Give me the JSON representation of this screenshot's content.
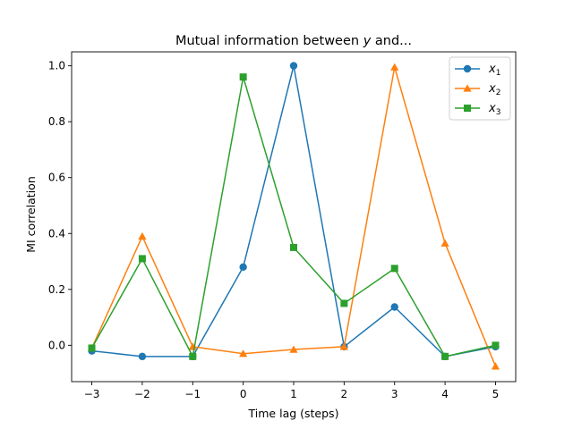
{
  "chart_data": {
    "type": "line",
    "title": "Mutual information between y and...",
    "title_parts": {
      "prefix": "Mutual information between ",
      "var": "y",
      "suffix": " and..."
    },
    "xlabel": "Time lag (steps)",
    "ylabel": "MI correlation",
    "x": [
      -3,
      -2,
      -1,
      0,
      1,
      2,
      3,
      4,
      5
    ],
    "xticks": [
      -3,
      -2,
      -1,
      0,
      1,
      2,
      3,
      4,
      5
    ],
    "xtick_labels": [
      "−3",
      "−2",
      "−1",
      "0",
      "1",
      "2",
      "3",
      "4",
      "5"
    ],
    "yticks": [
      0.0,
      0.2,
      0.4,
      0.6,
      0.8,
      1.0
    ],
    "ytick_labels": [
      "0.0",
      "0.2",
      "0.4",
      "0.6",
      "0.8",
      "1.0"
    ],
    "xlim": [
      -3.4,
      5.4
    ],
    "ylim": [
      -0.13,
      1.05
    ],
    "grid": false,
    "legend_position": "top-right",
    "series": [
      {
        "name": "x1",
        "var": "x",
        "sub": "1",
        "color": "#1f77b4",
        "marker": "circle",
        "values": [
          -0.02,
          -0.04,
          -0.04,
          0.28,
          1.0,
          -0.005,
          0.137,
          -0.04,
          -0.005
        ]
      },
      {
        "name": "x2",
        "var": "x",
        "sub": "2",
        "color": "#ff7f0e",
        "marker": "triangle",
        "values": [
          -0.01,
          0.39,
          -0.005,
          -0.03,
          -0.015,
          -0.005,
          0.995,
          0.365,
          -0.075
        ]
      },
      {
        "name": "x3",
        "var": "x",
        "sub": "3",
        "color": "#2ca02c",
        "marker": "square",
        "values": [
          -0.01,
          0.31,
          -0.04,
          0.96,
          0.35,
          0.15,
          0.275,
          -0.04,
          0.0
        ]
      }
    ]
  }
}
